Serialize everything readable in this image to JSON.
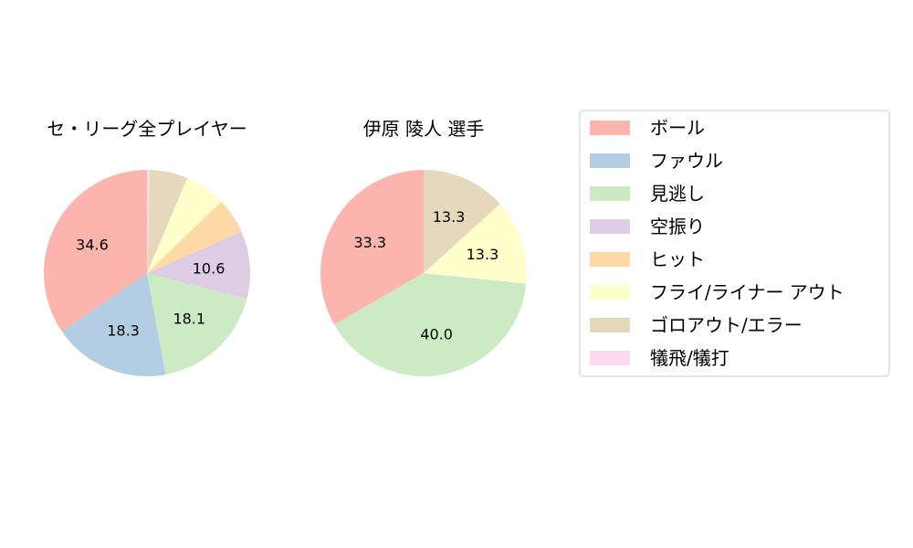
{
  "chart_data": [
    {
      "type": "pie",
      "title": "セ・リーグ全プレイヤー",
      "categories": [
        "ボール",
        "ファウル",
        "見逃し",
        "空振り",
        "ヒット",
        "フライ/ライナー アウト",
        "ゴロアウト/エラー",
        "犠飛/犠打"
      ],
      "values": [
        34.6,
        18.3,
        18.1,
        10.6,
        5.6,
        6.4,
        6.0,
        0.4
      ],
      "data_labels": [
        "34.6",
        "18.3",
        "18.1",
        "10.6",
        "",
        "",
        "",
        ""
      ]
    },
    {
      "type": "pie",
      "title": "伊原 陵人  選手",
      "categories": [
        "ボール",
        "ファウル",
        "見逃し",
        "空振り",
        "ヒット",
        "フライ/ライナー アウト",
        "ゴロアウト/エラー",
        "犠飛/犠打"
      ],
      "values": [
        33.3,
        0,
        40.0,
        0,
        0,
        13.3,
        13.3,
        0
      ],
      "data_labels": [
        "33.3",
        "",
        "40.0",
        "",
        "",
        "13.3",
        "13.3",
        ""
      ]
    }
  ],
  "legend": {
    "placement": "right",
    "items": [
      "ボール",
      "ファウル",
      "見逃し",
      "空振り",
      "ヒット",
      "フライ/ライナー アウト",
      "ゴロアウト/エラー",
      "犠飛/犠打"
    ]
  },
  "colors": [
    "#fbb4ae",
    "#b3cde3",
    "#ccebc5",
    "#decbe4",
    "#fed9a6",
    "#ffffcc",
    "#e5d8bd",
    "#fddaec"
  ]
}
